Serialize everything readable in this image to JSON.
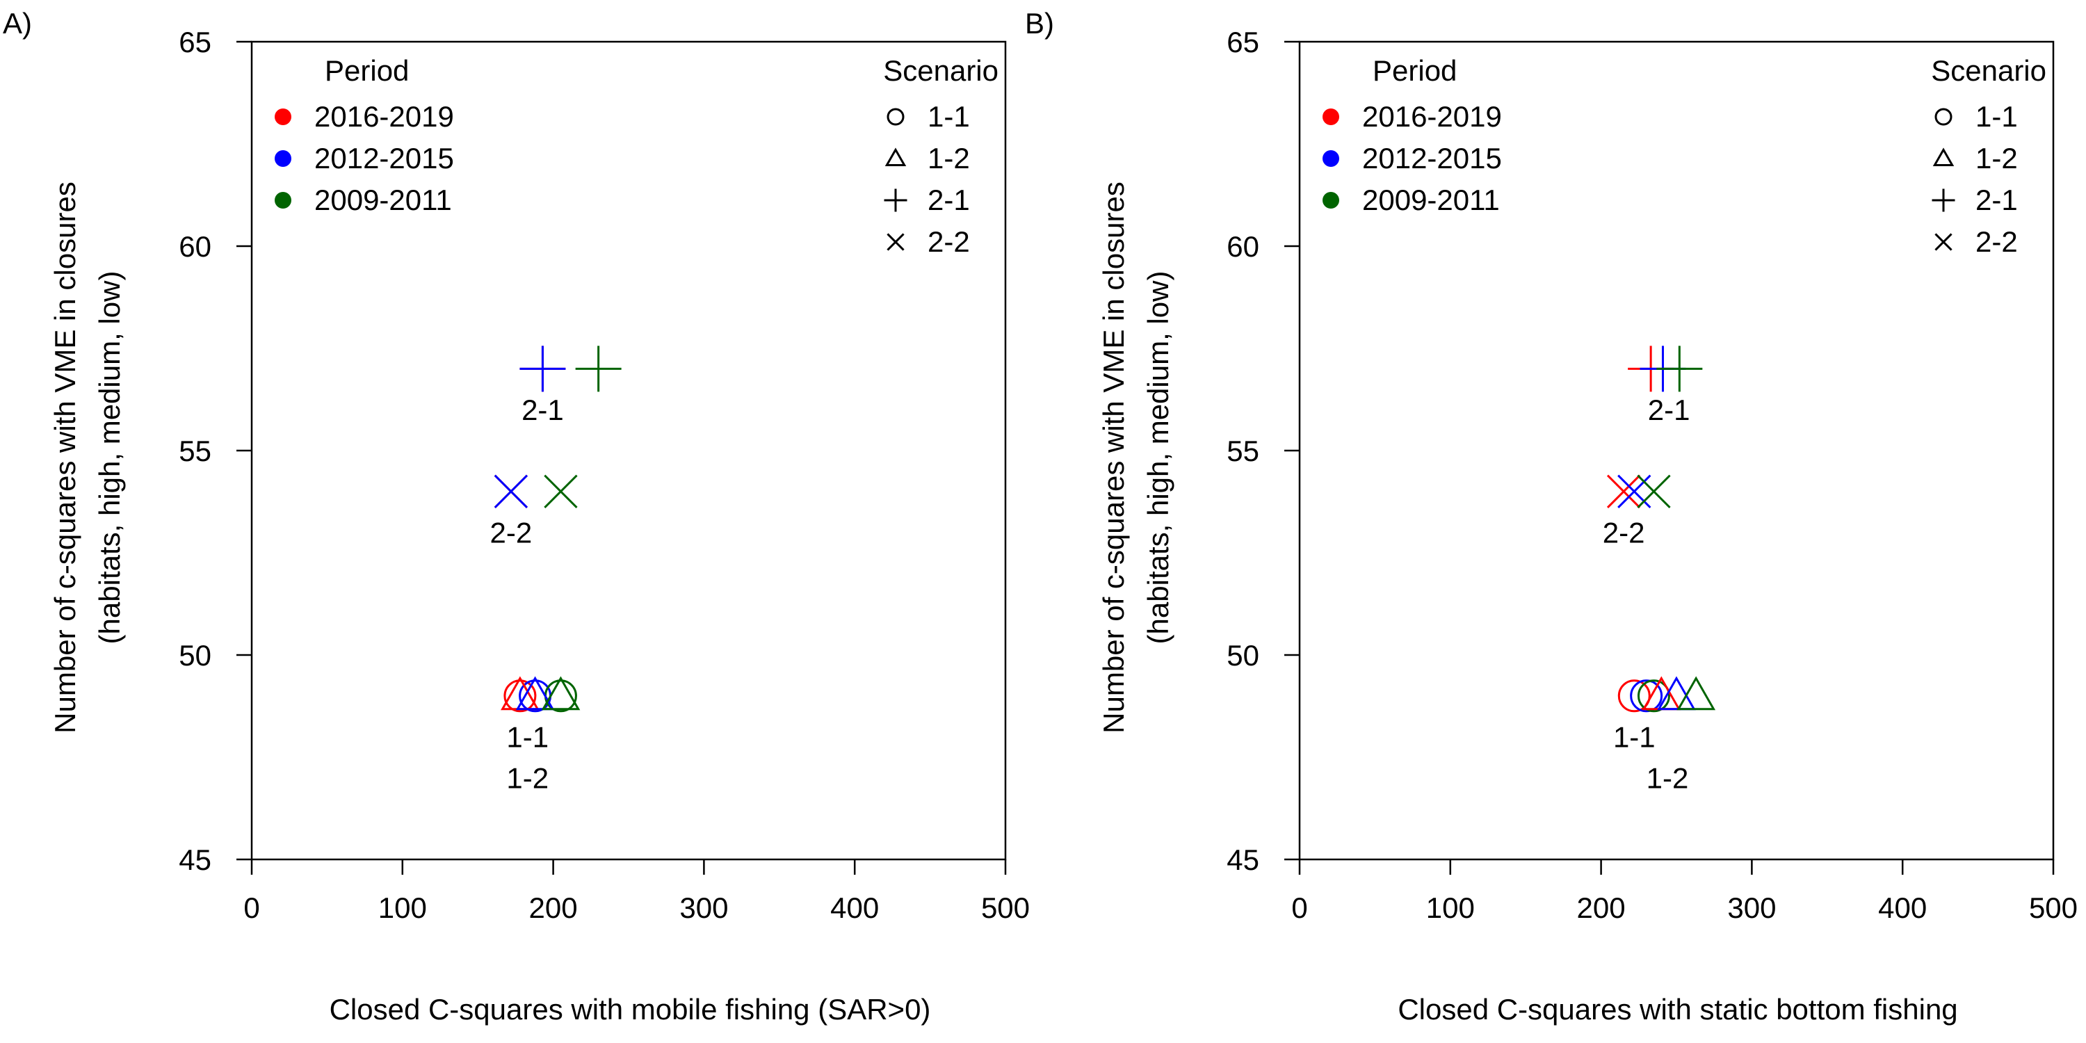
{
  "chart_data": [
    {
      "type": "scatter",
      "panel_label": "A)",
      "title": "",
      "xlabel": "Closed C-squares with mobile fishing (SAR>0)",
      "ylabel": [
        "Number of c-squares with VME in closures",
        "(habitats, high, medium, low)"
      ],
      "xlim": [
        0,
        500
      ],
      "ylim": [
        45,
        65
      ],
      "xticks": [
        "0",
        "100",
        "200",
        "300",
        "400",
        "500"
      ],
      "yticks": [
        "45",
        "50",
        "55",
        "60",
        "65"
      ],
      "grid": false,
      "legend_period": {
        "title": "Period",
        "placement": "top-left",
        "entries": [
          {
            "label": "2016-2019",
            "color": "#ff0000"
          },
          {
            "label": "2012-2015",
            "color": "#0000ff"
          },
          {
            "label": "2009-2011",
            "color": "#006400"
          }
        ]
      },
      "legend_scenario": {
        "title": "Scenario",
        "placement": "top-right",
        "entries": [
          {
            "label": "1-1",
            "shape": "circle"
          },
          {
            "label": "1-2",
            "shape": "triangle"
          },
          {
            "label": "2-1",
            "shape": "plus"
          },
          {
            "label": "2-2",
            "shape": "cross"
          }
        ]
      },
      "points": [
        {
          "x": 178,
          "y": 49,
          "scenario": "1-1",
          "period": "2016-2019"
        },
        {
          "x": 188,
          "y": 49,
          "scenario": "1-1",
          "period": "2012-2015"
        },
        {
          "x": 205,
          "y": 49,
          "scenario": "1-1",
          "period": "2009-2011"
        },
        {
          "x": 178,
          "y": 49,
          "scenario": "1-2",
          "period": "2016-2019"
        },
        {
          "x": 188,
          "y": 49,
          "scenario": "1-2",
          "period": "2012-2015"
        },
        {
          "x": 205,
          "y": 49,
          "scenario": "1-2",
          "period": "2009-2011"
        },
        {
          "x": 193,
          "y": 57,
          "scenario": "2-1",
          "period": "2016-2019"
        },
        {
          "x": 193,
          "y": 57,
          "scenario": "2-1",
          "period": "2012-2015"
        },
        {
          "x": 230,
          "y": 57,
          "scenario": "2-1",
          "period": "2009-2011"
        },
        {
          "x": 172,
          "y": 54,
          "scenario": "2-2",
          "period": "2016-2019"
        },
        {
          "x": 172,
          "y": 54,
          "scenario": "2-2",
          "period": "2012-2015"
        },
        {
          "x": 205,
          "y": 54,
          "scenario": "2-2",
          "period": "2009-2011"
        }
      ],
      "annotations": [
        {
          "text": "2-1",
          "x": 193,
          "y": 56.0
        },
        {
          "text": "2-2",
          "x": 172,
          "y": 53.0
        },
        {
          "text": "1-1",
          "x": 183,
          "y": 48.0
        },
        {
          "text": "1-2",
          "x": 183,
          "y": 47.0
        }
      ]
    },
    {
      "type": "scatter",
      "panel_label": "B)",
      "title": "",
      "xlabel": "Closed C-squares with static bottom fishing",
      "ylabel": [
        "Number of c-squares with VME in closures",
        "(habitats, high, medium, low)"
      ],
      "xlim": [
        0,
        500
      ],
      "ylim": [
        45,
        65
      ],
      "xticks": [
        "0",
        "100",
        "200",
        "300",
        "400",
        "500"
      ],
      "yticks": [
        "45",
        "50",
        "55",
        "60",
        "65"
      ],
      "grid": false,
      "legend_period": {
        "title": "Period",
        "placement": "top-left",
        "entries": [
          {
            "label": "2016-2019",
            "color": "#ff0000"
          },
          {
            "label": "2012-2015",
            "color": "#0000ff"
          },
          {
            "label": "2009-2011",
            "color": "#006400"
          }
        ]
      },
      "legend_scenario": {
        "title": "Scenario",
        "placement": "top-right",
        "entries": [
          {
            "label": "1-1",
            "shape": "circle"
          },
          {
            "label": "1-2",
            "shape": "triangle"
          },
          {
            "label": "2-1",
            "shape": "plus"
          },
          {
            "label": "2-2",
            "shape": "cross"
          }
        ]
      },
      "points": [
        {
          "x": 222,
          "y": 49,
          "scenario": "1-1",
          "period": "2016-2019"
        },
        {
          "x": 230,
          "y": 49,
          "scenario": "1-1",
          "period": "2012-2015"
        },
        {
          "x": 235,
          "y": 49,
          "scenario": "1-1",
          "period": "2009-2011"
        },
        {
          "x": 240,
          "y": 49,
          "scenario": "1-2",
          "period": "2016-2019"
        },
        {
          "x": 250,
          "y": 49,
          "scenario": "1-2",
          "period": "2012-2015"
        },
        {
          "x": 263,
          "y": 49,
          "scenario": "1-2",
          "period": "2009-2011"
        },
        {
          "x": 233,
          "y": 57,
          "scenario": "2-1",
          "period": "2016-2019"
        },
        {
          "x": 241,
          "y": 57,
          "scenario": "2-1",
          "period": "2012-2015"
        },
        {
          "x": 252,
          "y": 57,
          "scenario": "2-1",
          "period": "2009-2011"
        },
        {
          "x": 215,
          "y": 54,
          "scenario": "2-2",
          "period": "2016-2019"
        },
        {
          "x": 222,
          "y": 54,
          "scenario": "2-2",
          "period": "2012-2015"
        },
        {
          "x": 235,
          "y": 54,
          "scenario": "2-2",
          "period": "2009-2011"
        }
      ],
      "annotations": [
        {
          "text": "2-1",
          "x": 245,
          "y": 56.0
        },
        {
          "text": "2-2",
          "x": 215,
          "y": 53.0
        },
        {
          "text": "1-1",
          "x": 222,
          "y": 48.0
        },
        {
          "text": "1-2",
          "x": 244,
          "y": 47.0
        }
      ]
    }
  ]
}
